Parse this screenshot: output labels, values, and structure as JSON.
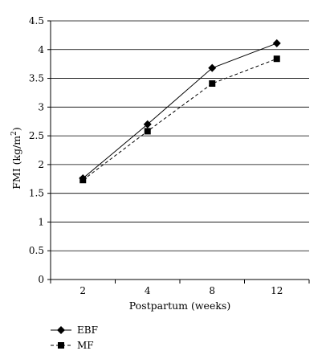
{
  "chart_data": {
    "type": "line",
    "categories": [
      "2",
      "4",
      "8",
      "12"
    ],
    "series": [
      {
        "name": "EBF",
        "values": [
          1.76,
          2.7,
          3.68,
          4.11
        ],
        "marker": "diamond",
        "line_style": "solid",
        "color": "#000000"
      },
      {
        "name": "MF",
        "values": [
          1.73,
          2.58,
          3.41,
          3.84
        ],
        "marker": "square",
        "line_style": "dashed",
        "color": "#000000"
      }
    ],
    "xlabel": "Postpartum (weeks)",
    "ylabel_main": "FMI (kg/m",
    "ylabel_sup": "2",
    "ylabel_close": ")",
    "ylim": [
      0,
      4.5
    ],
    "yticks": [
      "0",
      "0.5",
      "1",
      "1.5",
      "2",
      "2.5",
      "3",
      "3.5",
      "4",
      "4.5"
    ],
    "grid": true,
    "legend_position": "bottom-left"
  }
}
